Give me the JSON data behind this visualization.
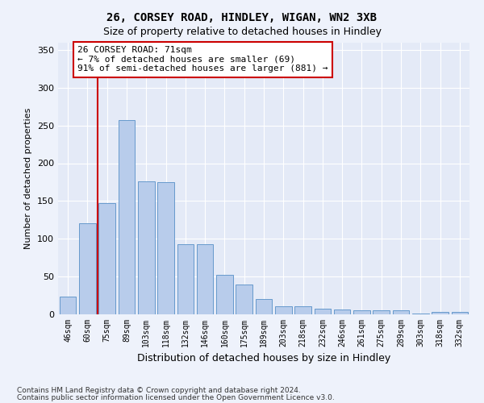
{
  "title_line1": "26, CORSEY ROAD, HINDLEY, WIGAN, WN2 3XB",
  "title_line2": "Size of property relative to detached houses in Hindley",
  "xlabel": "Distribution of detached houses by size in Hindley",
  "ylabel": "Number of detached properties",
  "categories": [
    "46sqm",
    "60sqm",
    "75sqm",
    "89sqm",
    "103sqm",
    "118sqm",
    "132sqm",
    "146sqm",
    "160sqm",
    "175sqm",
    "189sqm",
    "203sqm",
    "218sqm",
    "232sqm",
    "246sqm",
    "261sqm",
    "275sqm",
    "289sqm",
    "303sqm",
    "318sqm",
    "332sqm"
  ],
  "values": [
    24,
    121,
    147,
    257,
    176,
    175,
    93,
    93,
    52,
    39,
    20,
    11,
    11,
    8,
    6,
    5,
    5,
    5,
    1,
    3,
    3
  ],
  "bar_color": "#b8cceb",
  "bar_edge_color": "#6699cc",
  "annotation_text_line1": "26 CORSEY ROAD: 71sqm",
  "annotation_text_line2": "← 7% of detached houses are smaller (69)",
  "annotation_text_line3": "91% of semi-detached houses are larger (881) →",
  "annotation_box_facecolor": "#ffffff",
  "annotation_box_edgecolor": "#cc0000",
  "vline_color": "#cc0000",
  "vline_x_index": 1.5,
  "ylim": [
    0,
    360
  ],
  "yticks": [
    0,
    50,
    100,
    150,
    200,
    250,
    300,
    350
  ],
  "footer_line1": "Contains HM Land Registry data © Crown copyright and database right 2024.",
  "footer_line2": "Contains public sector information licensed under the Open Government Licence v3.0.",
  "background_color": "#eef2fb",
  "plot_background_color": "#e4eaf7",
  "grid_color": "#ffffff",
  "title_fontsize": 10,
  "subtitle_fontsize": 9,
  "ylabel_fontsize": 8,
  "xlabel_fontsize": 9,
  "tick_fontsize": 7,
  "footer_fontsize": 6.5,
  "annotation_fontsize": 8
}
